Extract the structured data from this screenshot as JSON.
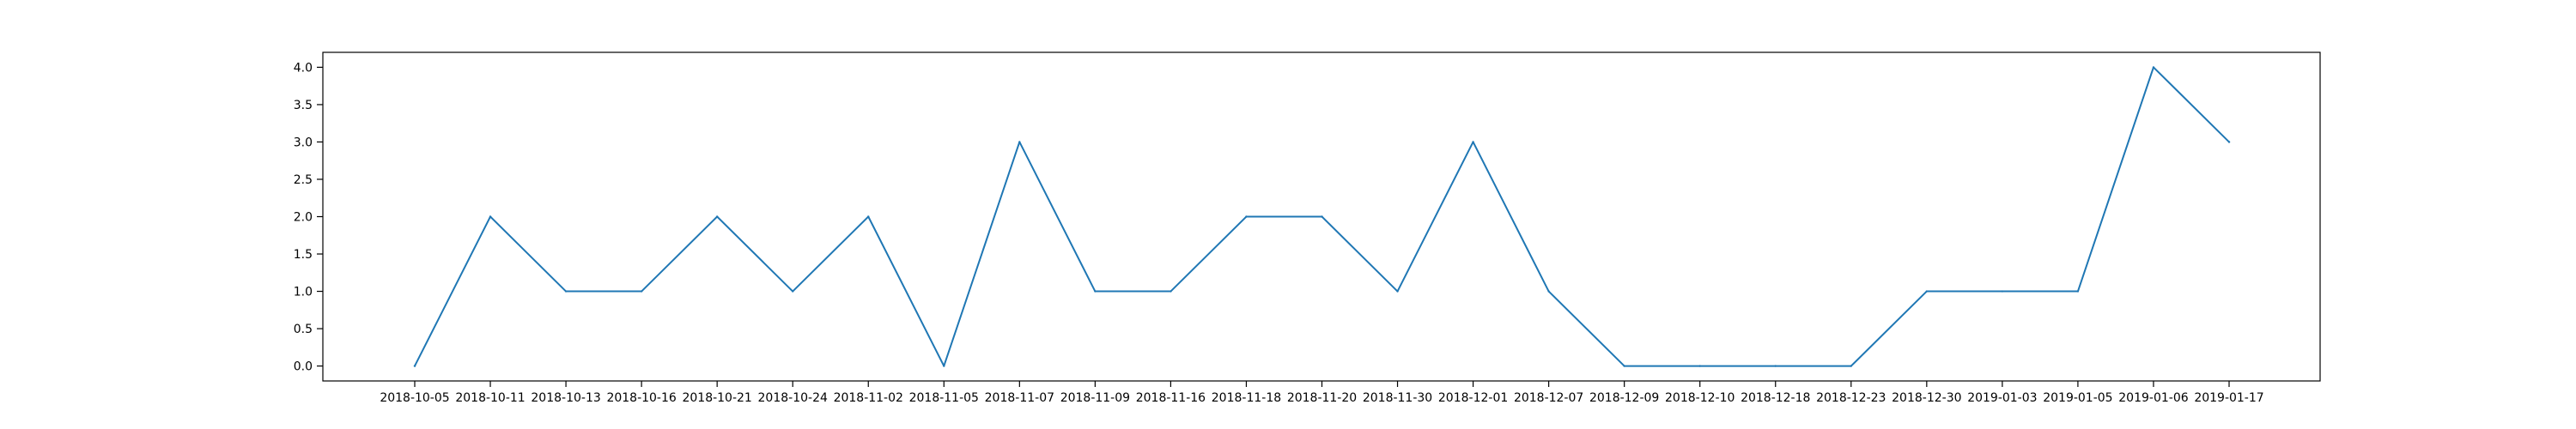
{
  "chart_data": {
    "type": "line",
    "title": "",
    "xlabel": "",
    "ylabel": "",
    "categories": [
      "2018-10-05",
      "2018-10-11",
      "2018-10-13",
      "2018-10-16",
      "2018-10-21",
      "2018-10-24",
      "2018-11-02",
      "2018-11-05",
      "2018-11-07",
      "2018-11-09",
      "2018-11-16",
      "2018-11-18",
      "2018-11-20",
      "2018-11-30",
      "2018-12-01",
      "2018-12-07",
      "2018-12-09",
      "2018-12-10",
      "2018-12-18",
      "2018-12-23",
      "2018-12-30",
      "2019-01-03",
      "2019-01-05",
      "2019-01-06",
      "2019-01-17"
    ],
    "series": [
      {
        "values": [
          0,
          2,
          1,
          1,
          2,
          1,
          2,
          0,
          3,
          1,
          1,
          2,
          2,
          1,
          3,
          1,
          0,
          0,
          0,
          0,
          1,
          1,
          1,
          4,
          3
        ],
        "color": "#1f77b4"
      }
    ],
    "yticks": [
      "0.0",
      "0.5",
      "1.0",
      "1.5",
      "2.0",
      "2.5",
      "3.0",
      "3.5",
      "4.0"
    ],
    "ylim": [
      -0.2,
      4.2
    ],
    "grid": false,
    "legend": "none"
  }
}
